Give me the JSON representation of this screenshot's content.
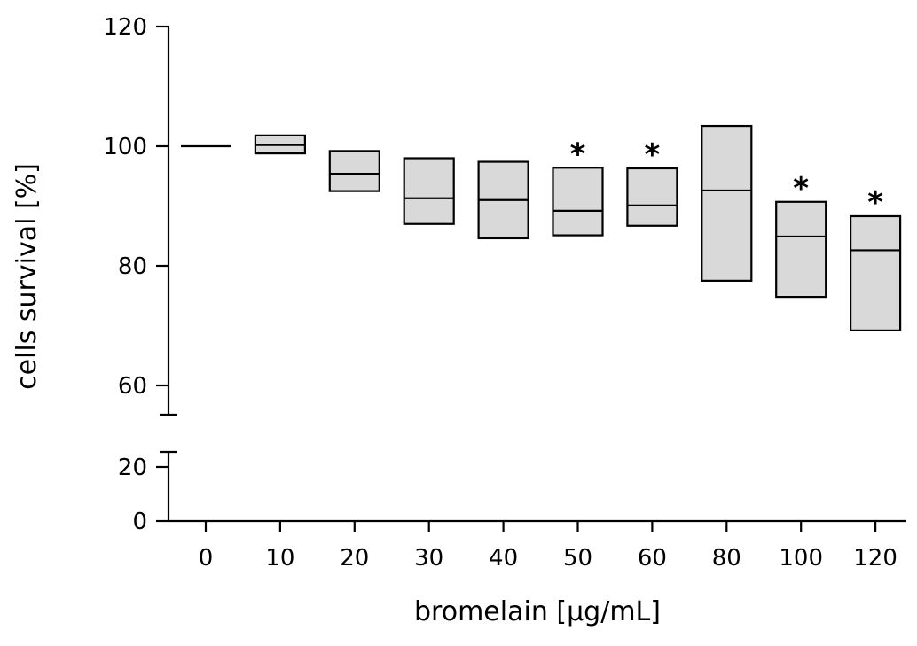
{
  "chart_data": {
    "type": "box",
    "xlabel": "bromelain [µg/mL]",
    "ylabel": "cells survival [%]",
    "y_axis_break": true,
    "y_lower_segment": {
      "range": [
        0,
        25
      ],
      "ticks": [
        0,
        20
      ]
    },
    "y_upper_segment": {
      "range": [
        55,
        120
      ],
      "ticks": [
        60,
        80,
        100,
        120
      ]
    },
    "categories": [
      "0",
      "10",
      "20",
      "30",
      "40",
      "50",
      "60",
      "80",
      "100",
      "120"
    ],
    "boxes": [
      {
        "low": 100.0,
        "median": 100.0,
        "high": 100.0
      },
      {
        "low": 98.8,
        "median": 100.2,
        "high": 101.8
      },
      {
        "low": 92.5,
        "median": 95.4,
        "high": 99.2
      },
      {
        "low": 87.0,
        "median": 91.3,
        "high": 98.0
      },
      {
        "low": 84.6,
        "median": 91.0,
        "high": 97.4
      },
      {
        "low": 85.1,
        "median": 89.2,
        "high": 96.4
      },
      {
        "low": 86.7,
        "median": 90.1,
        "high": 96.3
      },
      {
        "low": 77.5,
        "median": 92.6,
        "high": 103.4
      },
      {
        "low": 74.8,
        "median": 84.9,
        "high": 90.7
      },
      {
        "low": 69.2,
        "median": 82.6,
        "high": 88.3
      }
    ],
    "significance": [
      {
        "category": "50",
        "label": "*"
      },
      {
        "category": "60",
        "label": "*"
      },
      {
        "category": "100",
        "label": "*"
      },
      {
        "category": "120",
        "label": "*"
      }
    ],
    "colors": {
      "box_fill": "#d9d9d9",
      "stroke": "#000000"
    }
  }
}
